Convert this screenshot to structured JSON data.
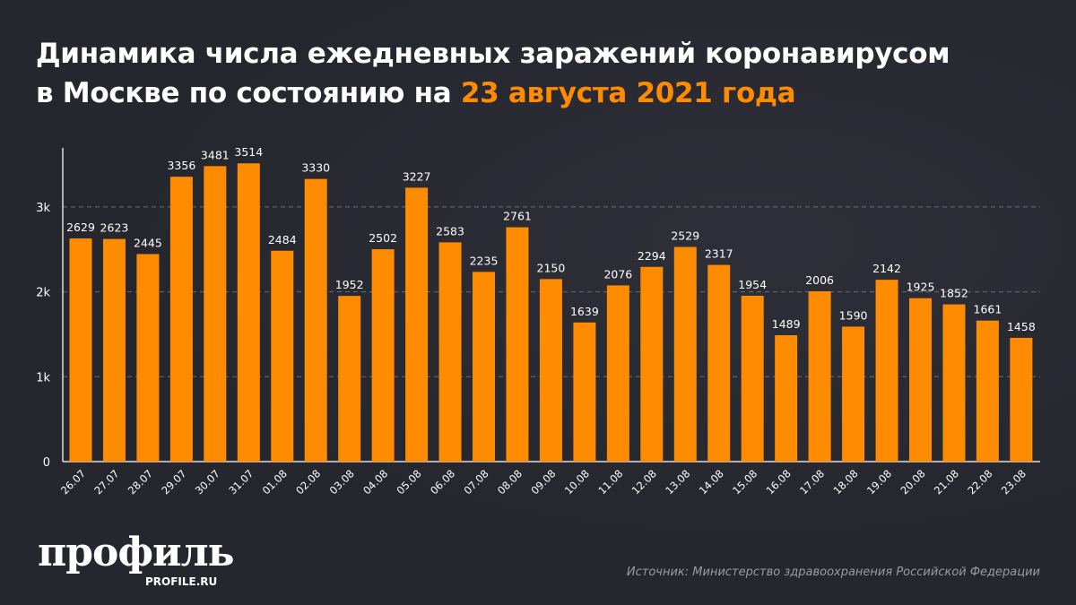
{
  "title": {
    "line1": "Динамика числа ежедневных заражений коронавирусом",
    "line2_prefix": "в Москве по состоянию на ",
    "line2_highlight": "23 августа 2021 года"
  },
  "colors": {
    "bar": "#ff8c00",
    "background": "#25262e",
    "highlight": "#ff8c00"
  },
  "logo": {
    "text": "профиль",
    "sub": "PROFILE.RU"
  },
  "source": "Источник: Министерство здравоохранения Российской Федерации",
  "chart_data": {
    "type": "bar",
    "title": "",
    "xlabel": "",
    "ylabel": "",
    "ylim": [
      0,
      3500
    ],
    "yticks": [
      0,
      1000,
      2000,
      3000
    ],
    "ytick_labels": [
      "0",
      "1k",
      "2k",
      "3k"
    ],
    "grid": "horizontal dashed",
    "categories": [
      "26.07",
      "27.07",
      "28.07",
      "29.07",
      "30.07",
      "31.07",
      "01.08",
      "02.08",
      "03.08",
      "04.08",
      "05.08",
      "06.08",
      "07.08",
      "08.08",
      "09.08",
      "10.08",
      "11.08",
      "12.08",
      "13.08",
      "14.08",
      "15.08",
      "16.08",
      "17.08",
      "18.08",
      "19.08",
      "20.08",
      "21.08",
      "22.08",
      "23.08"
    ],
    "values": [
      2629,
      2623,
      2445,
      3356,
      3481,
      3514,
      2484,
      3330,
      1952,
      2502,
      3227,
      2583,
      2235,
      2761,
      2150,
      1639,
      2076,
      2294,
      2529,
      2317,
      1954,
      1489,
      2006,
      1590,
      2142,
      1925,
      1852,
      1661,
      1458
    ]
  }
}
